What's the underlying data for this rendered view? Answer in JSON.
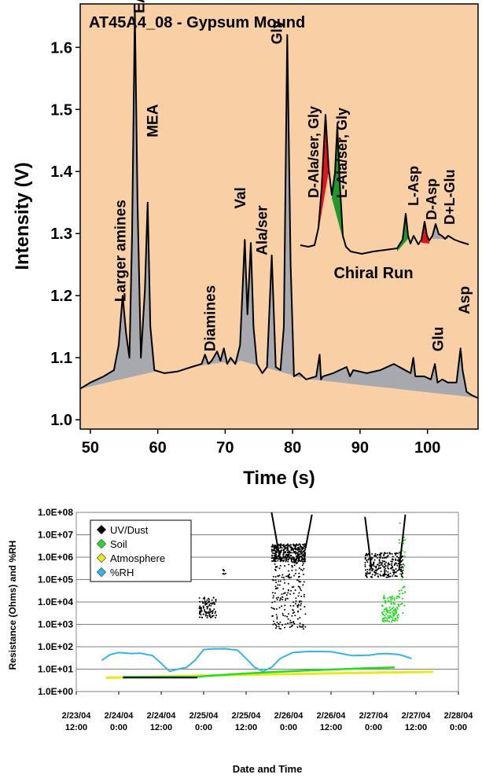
{
  "chart_data": [
    {
      "type": "line",
      "title": "AT45A4_08 - Gypsum Mound",
      "xlabel": "Time (s)",
      "ylabel": "Intensity (V)",
      "xlim": [
        48.5,
        107.5
      ],
      "ylim": [
        0.985,
        1.67
      ],
      "xticks": [
        "50",
        "60",
        "70",
        "80",
        "90",
        "100"
      ],
      "yticks": [
        "1.0",
        "1.1",
        "1.2",
        "1.3",
        "1.4",
        "1.5",
        "1.6"
      ],
      "background": "#f9cfa6",
      "peak_fill": "#a7a9ae",
      "series": [
        {
          "x": [
            48.5,
            50,
            52,
            53.5,
            54.2,
            54.8,
            55.3,
            55.8,
            56.2,
            56.6,
            57.0,
            57.5,
            58.1,
            58.5,
            58.9,
            59.5,
            61,
            63,
            65,
            66.5,
            67,
            67.5,
            68,
            68.8,
            69.3,
            69.8,
            70.3,
            70.8,
            71.5,
            72.2,
            72.9,
            73.3,
            73.8,
            74.2,
            74.7,
            75.5,
            76.2,
            76.9,
            77.5,
            78.2,
            78.7,
            79.2,
            79.7,
            80.2,
            81,
            82,
            83.5,
            84.0,
            84.2,
            84.5,
            86,
            88,
            88.5,
            89,
            91,
            93,
            95,
            97.5,
            97.9,
            98.2,
            99.5,
            100.5,
            101.1,
            101.5,
            102.2,
            103,
            104.3,
            104.9,
            105.2,
            105.8,
            106.5,
            107.5
          ],
          "values": [
            1.05,
            1.06,
            1.07,
            1.08,
            1.12,
            1.2,
            1.14,
            1.1,
            1.3,
            1.66,
            1.35,
            1.1,
            1.21,
            1.35,
            1.15,
            1.08,
            1.075,
            1.078,
            1.085,
            1.09,
            1.105,
            1.09,
            1.095,
            1.11,
            1.095,
            1.115,
            1.09,
            1.1,
            1.09,
            1.12,
            1.29,
            1.17,
            1.285,
            1.15,
            1.09,
            1.075,
            1.085,
            1.265,
            1.085,
            1.08,
            1.15,
            1.62,
            1.25,
            1.07,
            1.075,
            1.065,
            1.07,
            1.105,
            1.065,
            1.07,
            1.075,
            1.085,
            1.07,
            1.08,
            1.075,
            1.08,
            1.09,
            1.075,
            1.1,
            1.07,
            1.07,
            1.065,
            1.09,
            1.06,
            1.065,
            1.06,
            1.06,
            1.115,
            1.08,
            1.045,
            1.04,
            1.035
          ]
        }
      ],
      "annotations": [
        {
          "text": "EA",
          "x": 58.0,
          "y": 1.655
        },
        {
          "text": "MEA",
          "x": 60.0,
          "y": 1.455
        },
        {
          "text": "Larger amines",
          "x": 55.2,
          "y": 1.19
        },
        {
          "text": "Diamines",
          "x": 68.5,
          "y": 1.11
        },
        {
          "text": "Val",
          "x": 73.0,
          "y": 1.34
        },
        {
          "text": "Ala/ser",
          "x": 76.2,
          "y": 1.265
        },
        {
          "text": "Gly",
          "x": 78.4,
          "y": 1.605
        },
        {
          "text": "Glu",
          "x": 102.3,
          "y": 1.11
        },
        {
          "text": "Asp",
          "x": 106.2,
          "y": 1.17
        }
      ],
      "inset": {
        "label": "Chiral Run",
        "peaks": [
          "D-Ala/ser, Gly",
          "L-Ala/ser, Gly",
          "L-Asp",
          "D-Asp",
          "D+L-Glu"
        ],
        "peak_colors": [
          "#e4141b",
          "#1f9a2a",
          "#1f9a2a",
          "#e4141b",
          "#a7a9ae"
        ]
      }
    },
    {
      "type": "scatter",
      "xlabel": "Date and Time",
      "ylabel": "Resistance (Ohms) and %RH",
      "yscale": "log",
      "ylim": [
        1,
        100000000
      ],
      "yticks": [
        "1.0E+08",
        "1.0E+07",
        "1.0E+06",
        "1.0E+05",
        "1.0E+04",
        "1.0E+03",
        "1.0E+02",
        "1.0E+01",
        "1.0E+00"
      ],
      "xticks": [
        {
          "date": "2/23/04",
          "time": "12:00"
        },
        {
          "date": "2/24/04",
          "time": "0:00"
        },
        {
          "date": "2/24/04",
          "time": "12:00"
        },
        {
          "date": "2/25/04",
          "time": "0:00"
        },
        {
          "date": "2/25/04",
          "time": "12:00"
        },
        {
          "date": "2/26/04",
          "time": "0:00"
        },
        {
          "date": "2/26/04",
          "time": "12:00"
        },
        {
          "date": "2/27/04",
          "time": "0:00"
        },
        {
          "date": "2/27/04",
          "time": "12:00"
        },
        {
          "date": "2/28/04",
          "time": "0:00"
        }
      ],
      "legend_position": "top-left",
      "grid": true,
      "series": [
        {
          "name": "UV/Dust",
          "color": "#000000"
        },
        {
          "name": "Soil",
          "color": "#22dd22"
        },
        {
          "name": "Atmosphere",
          "color": "#e8e81a"
        },
        {
          "name": "%RH",
          "color": "#33b5e5"
        }
      ]
    }
  ]
}
